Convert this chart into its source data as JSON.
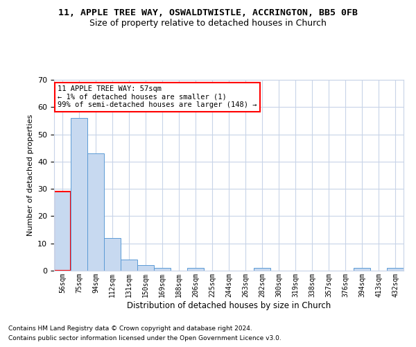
{
  "title_line1": "11, APPLE TREE WAY, OSWALDTWISTLE, ACCRINGTON, BB5 0FB",
  "title_line2": "Size of property relative to detached houses in Church",
  "xlabel": "Distribution of detached houses by size in Church",
  "ylabel": "Number of detached properties",
  "categories": [
    "56sqm",
    "75sqm",
    "94sqm",
    "112sqm",
    "131sqm",
    "150sqm",
    "169sqm",
    "188sqm",
    "206sqm",
    "225sqm",
    "244sqm",
    "263sqm",
    "282sqm",
    "300sqm",
    "319sqm",
    "338sqm",
    "357sqm",
    "376sqm",
    "394sqm",
    "413sqm",
    "432sqm"
  ],
  "values": [
    29,
    56,
    43,
    12,
    4,
    2,
    1,
    0,
    1,
    0,
    0,
    0,
    1,
    0,
    0,
    0,
    0,
    0,
    1,
    0,
    1
  ],
  "bar_color": "#c7d9f0",
  "bar_edge_color": "#5b9bd5",
  "highlight_edge_color": "#ff0000",
  "ylim": [
    0,
    70
  ],
  "yticks": [
    0,
    10,
    20,
    30,
    40,
    50,
    60,
    70
  ],
  "annotation_text": "11 APPLE TREE WAY: 57sqm\n← 1% of detached houses are smaller (1)\n99% of semi-detached houses are larger (148) →",
  "annotation_box_color": "#ffffff",
  "annotation_box_edge": "#ff0000",
  "grid_color": "#c8d4e8",
  "footnote1": "Contains HM Land Registry data © Crown copyright and database right 2024.",
  "footnote2": "Contains public sector information licensed under the Open Government Licence v3.0."
}
